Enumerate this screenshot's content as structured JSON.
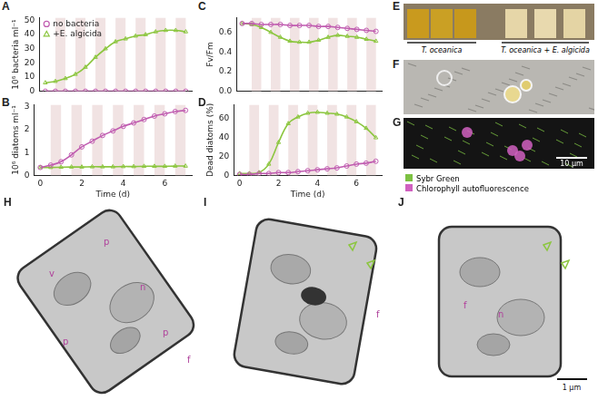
{
  "chart_data": [
    {
      "type": "line",
      "panel": "A",
      "y_label": "10⁶ bacteria ml⁻¹",
      "tick_labels": "y",
      "x": [
        0,
        0.5,
        1,
        1.5,
        2,
        2.5,
        3,
        3.5,
        4,
        4.5,
        5,
        5.5,
        6,
        6.5,
        7
      ],
      "xlim": [
        -0.3,
        7.3
      ],
      "xticks": [
        0,
        2,
        4,
        6
      ],
      "ylim": [
        0,
        52
      ],
      "yticks": [
        0,
        10,
        20,
        30,
        40,
        50
      ],
      "dark_periods": [
        [
          0.5,
          1
        ],
        [
          1.5,
          2
        ],
        [
          2.5,
          3
        ],
        [
          3.5,
          4
        ],
        [
          4.5,
          5
        ],
        [
          5.5,
          6
        ],
        [
          6.5,
          7
        ]
      ],
      "legend": "upper left",
      "series": [
        {
          "name": "no bacteria",
          "color": "#c05cb0",
          "marker": "circle",
          "values": [
            0,
            0,
            0,
            0,
            0,
            0,
            0,
            0,
            0,
            0,
            0,
            0,
            0,
            0,
            0
          ]
        },
        {
          "name": "+E. algicida",
          "color": "#8cc63f",
          "marker": "triangle",
          "values": [
            6,
            7,
            9,
            12,
            17,
            24,
            30,
            35,
            37,
            39,
            40,
            42,
            43,
            43,
            42
          ]
        }
      ]
    },
    {
      "type": "line",
      "panel": "B",
      "y_label": "10⁶ diatoms ml⁻¹",
      "x_label": "Time (d)",
      "x": [
        0,
        0.5,
        1,
        1.5,
        2,
        2.5,
        3,
        3.5,
        4,
        4.5,
        5,
        5.5,
        6,
        6.5,
        7
      ],
      "xlim": [
        -0.3,
        7.3
      ],
      "xticks": [
        0,
        2,
        4,
        6
      ],
      "ylim": [
        0,
        3.1
      ],
      "yticks": [
        0,
        1,
        2,
        3
      ],
      "dark_periods": [
        [
          0.5,
          1
        ],
        [
          1.5,
          2
        ],
        [
          2.5,
          3
        ],
        [
          3.5,
          4
        ],
        [
          4.5,
          5
        ],
        [
          5.5,
          6
        ],
        [
          6.5,
          7
        ]
      ],
      "series": [
        {
          "name": "no bacteria",
          "color": "#c05cb0",
          "marker": "circle",
          "values": [
            0.35,
            0.45,
            0.6,
            0.9,
            1.25,
            1.5,
            1.75,
            1.95,
            2.15,
            2.3,
            2.45,
            2.6,
            2.7,
            2.8,
            2.85
          ]
        },
        {
          "name": "+E. algicida",
          "color": "#8cc63f",
          "marker": "triangle",
          "values": [
            0.35,
            0.35,
            0.36,
            0.37,
            0.37,
            0.38,
            0.38,
            0.38,
            0.39,
            0.39,
            0.4,
            0.4,
            0.4,
            0.41,
            0.41
          ]
        }
      ]
    },
    {
      "type": "line",
      "panel": "C",
      "y_label": "Fv/Fm",
      "tick_labels": "y",
      "x": [
        0,
        0.5,
        1,
        1.5,
        2,
        2.5,
        3,
        3.5,
        4,
        4.5,
        5,
        5.5,
        6,
        6.5,
        7
      ],
      "xlim": [
        -0.3,
        7.3
      ],
      "xticks": [
        0,
        2,
        4,
        6
      ],
      "ylim": [
        0,
        0.75
      ],
      "yticks": [
        {
          "value": 0,
          "label": "0.0"
        },
        0.2,
        0.4,
        0.6
      ],
      "dark_periods": [
        [
          0.5,
          1
        ],
        [
          1.5,
          2
        ],
        [
          2.5,
          3
        ],
        [
          3.5,
          4
        ],
        [
          4.5,
          5
        ],
        [
          5.5,
          6
        ],
        [
          6.5,
          7
        ]
      ],
      "series": [
        {
          "name": "no bacteria",
          "color": "#c05cb0",
          "marker": "circle",
          "values": [
            0.69,
            0.69,
            0.68,
            0.68,
            0.68,
            0.67,
            0.67,
            0.67,
            0.66,
            0.66,
            0.65,
            0.64,
            0.63,
            0.62,
            0.61
          ]
        },
        {
          "name": "+E. algicida",
          "color": "#8cc63f",
          "marker": "triangle",
          "values": [
            0.69,
            0.68,
            0.65,
            0.6,
            0.55,
            0.51,
            0.5,
            0.5,
            0.52,
            0.55,
            0.57,
            0.56,
            0.55,
            0.53,
            0.51
          ]
        }
      ]
    },
    {
      "type": "line",
      "panel": "D",
      "y_label": "Dead diatoms (%)",
      "x_label": "Time (d)",
      "x": [
        0,
        0.5,
        1,
        1.5,
        2,
        2.5,
        3,
        3.5,
        4,
        4.5,
        5,
        5.5,
        6,
        6.5,
        7
      ],
      "xlim": [
        -0.3,
        7.3
      ],
      "xticks": [
        0,
        2,
        4,
        6
      ],
      "ylim": [
        0,
        75
      ],
      "yticks": [
        0,
        20,
        40,
        60
      ],
      "dark_periods": [
        [
          0.5,
          1
        ],
        [
          1.5,
          2
        ],
        [
          2.5,
          3
        ],
        [
          3.5,
          4
        ],
        [
          4.5,
          5
        ],
        [
          5.5,
          6
        ],
        [
          6.5,
          7
        ]
      ],
      "series": [
        {
          "name": "no bacteria",
          "color": "#c05cb0",
          "marker": "circle",
          "values": [
            1,
            1,
            2,
            2,
            3,
            3,
            4,
            5,
            6,
            7,
            8,
            10,
            12,
            13,
            15
          ]
        },
        {
          "name": "+E. algicida",
          "color": "#8cc63f",
          "marker": "triangle",
          "values": [
            2,
            2,
            3,
            12,
            35,
            55,
            62,
            66,
            67,
            66,
            65,
            62,
            57,
            50,
            40
          ]
        }
      ]
    }
  ],
  "image_panels": [
    {
      "panel": "E",
      "labels": [
        "T. oceanica",
        "T. oceanica + E. algicida"
      ]
    },
    {
      "panel": "F"
    },
    {
      "panel": "G",
      "legend": [
        {
          "name": "Sybr Green",
          "color": "#7cc142"
        },
        {
          "name": "Chlorophyll autofluorescence",
          "color": "#d060c0"
        }
      ],
      "scale_bar": "10 µm"
    },
    {
      "panel": "H",
      "labels": [
        "p",
        "p",
        "n",
        "p",
        "v",
        "f"
      ]
    },
    {
      "panel": "I",
      "labels": [
        "f"
      ]
    },
    {
      "panel": "J",
      "labels": [
        "f",
        "n"
      ],
      "scale_bar": "1 µm"
    }
  ]
}
